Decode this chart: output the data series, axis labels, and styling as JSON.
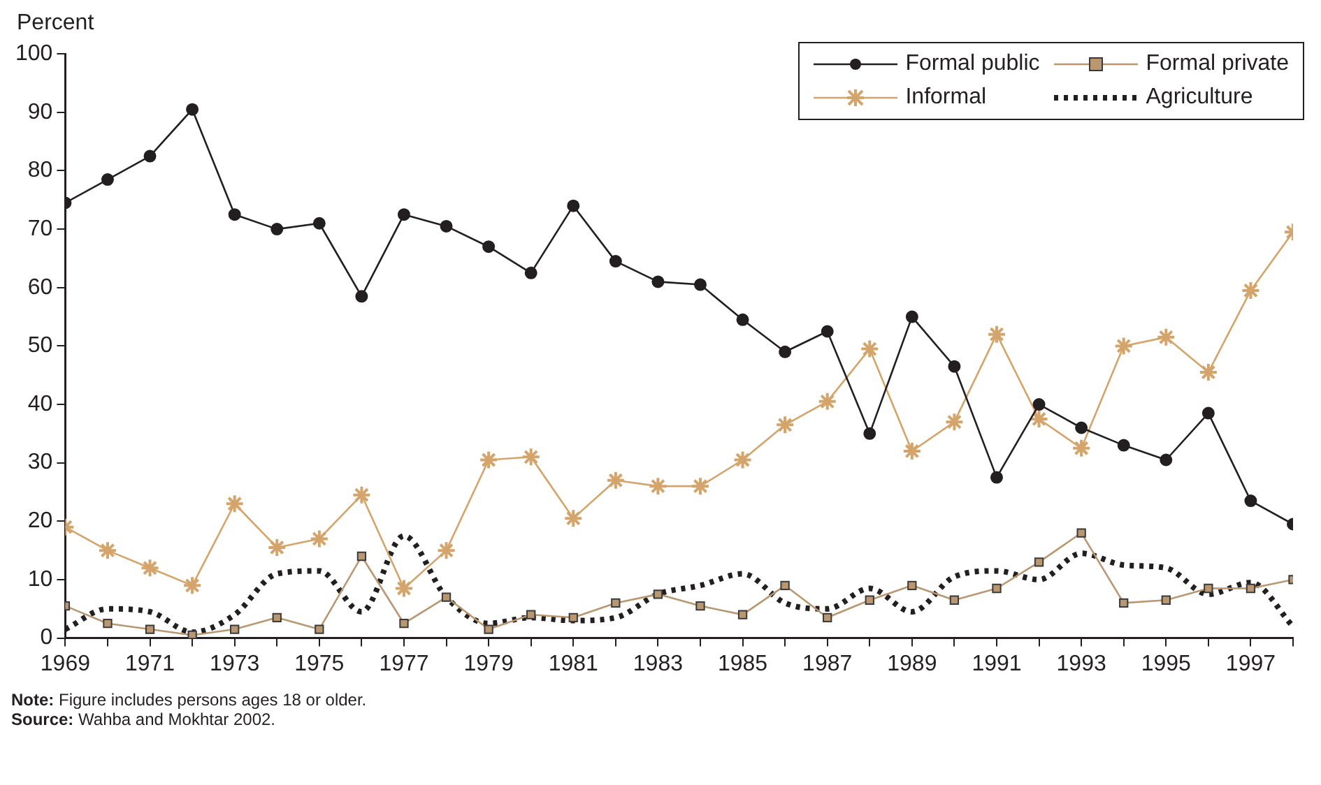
{
  "chart_data": {
    "type": "line",
    "ylabel": "Percent",
    "x": [
      1969,
      1970,
      1971,
      1972,
      1973,
      1974,
      1975,
      1976,
      1977,
      1978,
      1979,
      1980,
      1981,
      1982,
      1983,
      1984,
      1985,
      1986,
      1987,
      1988,
      1989,
      1990,
      1991,
      1992,
      1993,
      1994,
      1995,
      1996,
      1997,
      1998
    ],
    "xlim": [
      1969,
      1998
    ],
    "xticks": [
      1969,
      {
        "value": 1970,
        "label": null
      },
      1971,
      {
        "value": 1972,
        "label": null
      },
      1973,
      {
        "value": 1974,
        "label": null
      },
      1975,
      {
        "value": 1976,
        "label": null
      },
      1977,
      {
        "value": 1978,
        "label": null
      },
      1979,
      {
        "value": 1980,
        "label": null
      },
      1981,
      {
        "value": 1982,
        "label": null
      },
      1983,
      {
        "value": 1984,
        "label": null
      },
      1985,
      {
        "value": 1986,
        "label": null
      },
      1987,
      {
        "value": 1988,
        "label": null
      },
      1989,
      {
        "value": 1990,
        "label": null
      },
      1991,
      {
        "value": 1992,
        "label": null
      },
      1993,
      {
        "value": 1994,
        "label": null
      },
      1995,
      {
        "value": 1996,
        "label": null
      },
      1997,
      {
        "value": 1998,
        "label": null
      }
    ],
    "ylim": [
      0,
      100
    ],
    "yticks": [
      0,
      10,
      20,
      30,
      40,
      50,
      60,
      70,
      80,
      90,
      100
    ],
    "grid": false,
    "legend": "top right",
    "series": [
      {
        "name": "Formal public",
        "color": "#231f20",
        "marker": "circle",
        "line_style": "solid",
        "values": [
          74.5,
          78.5,
          82.5,
          90.5,
          72.5,
          70,
          71,
          58.5,
          72.5,
          70.5,
          67,
          62.5,
          74,
          64.5,
          61,
          60.5,
          54.5,
          49,
          52.5,
          35,
          55,
          46.5,
          27.5,
          40,
          36,
          33,
          30.5,
          38.5,
          23.5,
          19.5
        ]
      },
      {
        "name": "Formal private",
        "color": "#b99770",
        "marker": "square",
        "line_style": "solid",
        "values": [
          5.5,
          2.5,
          1.5,
          0.5,
          1.5,
          3.5,
          1.5,
          14,
          2.5,
          7,
          1.5,
          4,
          3.5,
          6,
          7.5,
          5.5,
          4,
          9,
          3.5,
          6.5,
          9,
          6.5,
          8.5,
          13,
          18,
          6,
          6.5,
          8.5,
          8.5,
          10
        ]
      },
      {
        "name": "Informal",
        "color": "#d4a46a",
        "marker": "cross",
        "line_style": "solid",
        "values": [
          19,
          15,
          12,
          9,
          23,
          15.5,
          17,
          24.5,
          8.5,
          15,
          30.5,
          31,
          20.5,
          27,
          26,
          26,
          30.5,
          36.5,
          40.5,
          49.5,
          32,
          37,
          52,
          37.5,
          32.5,
          50,
          51.5,
          45.5,
          59.5,
          69.5
        ]
      },
      {
        "name": "Agriculture",
        "color": "#231f20",
        "marker": "none",
        "line_style": "dotted",
        "values": [
          1.5,
          5,
          4.5,
          1,
          4,
          11,
          11.5,
          4.5,
          17.5,
          7,
          2.5,
          3.5,
          3,
          3.5,
          7.5,
          9,
          11,
          6,
          5,
          8.5,
          4.5,
          10.5,
          11.5,
          10,
          14.5,
          12.5,
          12,
          7.5,
          9.5,
          2
        ]
      }
    ],
    "annotations": [
      "Note: Figure includes persons ages 18 or older.",
      "Source: Wahba and Mokhtar 2002."
    ]
  }
}
